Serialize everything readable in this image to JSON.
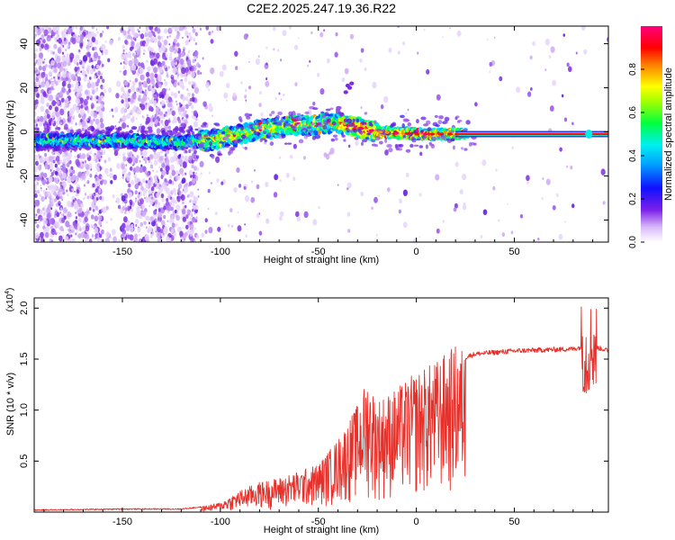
{
  "title": "C2E2.2025.247.19.36.R22",
  "chart_data": [
    {
      "type": "heatmap",
      "title": "C2E2.2025.247.19.36.R22",
      "xlabel": "Height of straight line (km)",
      "ylabel": "Frequency (Hz)",
      "xlim": [
        -195,
        98
      ],
      "ylim": [
        -50,
        48
      ],
      "x_ticks": [
        -150,
        -100,
        -50,
        0,
        50
      ],
      "x_tick_labels": [
        "-150",
        "-100",
        "-50",
        "0",
        "50"
      ],
      "y_ticks": [
        -40,
        -20,
        0,
        20,
        40
      ],
      "y_tick_labels": [
        "-40",
        "-20",
        "0",
        "20",
        "40"
      ],
      "grid": false,
      "colorbar": {
        "label": "Normalized spectral amplitude",
        "range": [
          0,
          1
        ],
        "ticks": [
          0.0,
          0.2,
          0.4,
          0.6,
          0.8
        ],
        "tick_labels": [
          "0.0",
          "0.2",
          "0.4",
          "0.6",
          "0.8"
        ],
        "colormap": "rainbow (white-violet-blue-cyan-green-yellow-red-magenta)"
      },
      "description_ridge": {
        "x": [
          -195,
          -150,
          -120,
          -100,
          -80,
          -60,
          -40,
          -30,
          -20,
          0,
          25,
          98
        ],
        "y": [
          -4,
          -4,
          -5,
          -3,
          1,
          3,
          4,
          2,
          0,
          -1,
          -1,
          -1
        ]
      }
    },
    {
      "type": "line",
      "xlabel": "Height of straight line (km)",
      "ylabel": "SNR (10 * v/v)",
      "y_multiplier_label": "(x10",
      "y_multiplier_exp": "4",
      "y_multiplier_close": ")",
      "xlim": [
        -195,
        98
      ],
      "ylim": [
        0,
        2.1
      ],
      "x_ticks": [
        -150,
        -100,
        -50,
        0,
        50
      ],
      "x_tick_labels": [
        "-150",
        "-100",
        "-50",
        "0",
        "50"
      ],
      "y_ticks": [
        0.5,
        1.0,
        1.5,
        2.0
      ],
      "y_tick_labels": [
        "0.5",
        "1.0",
        "1.5",
        "2.0"
      ],
      "color": "#e8302a",
      "series": [
        {
          "name": "SNR",
          "envelope_x": [
            -195,
            -150,
            -120,
            -110,
            -100,
            -90,
            -80,
            -70,
            -60,
            -50,
            -40,
            -30,
            -25,
            -20,
            -10,
            0,
            10,
            20,
            25,
            30,
            50,
            80,
            85,
            87,
            88,
            90,
            95,
            98
          ],
          "envelope_y": [
            0.02,
            0.03,
            0.03,
            0.05,
            0.09,
            0.2,
            0.28,
            0.32,
            0.38,
            0.45,
            0.68,
            1.0,
            1.25,
            1.05,
            1.15,
            1.3,
            1.4,
            1.55,
            1.52,
            1.55,
            1.58,
            1.6,
            1.62,
            1.5,
            1.63,
            1.62,
            1.6,
            1.58
          ]
        }
      ]
    }
  ]
}
